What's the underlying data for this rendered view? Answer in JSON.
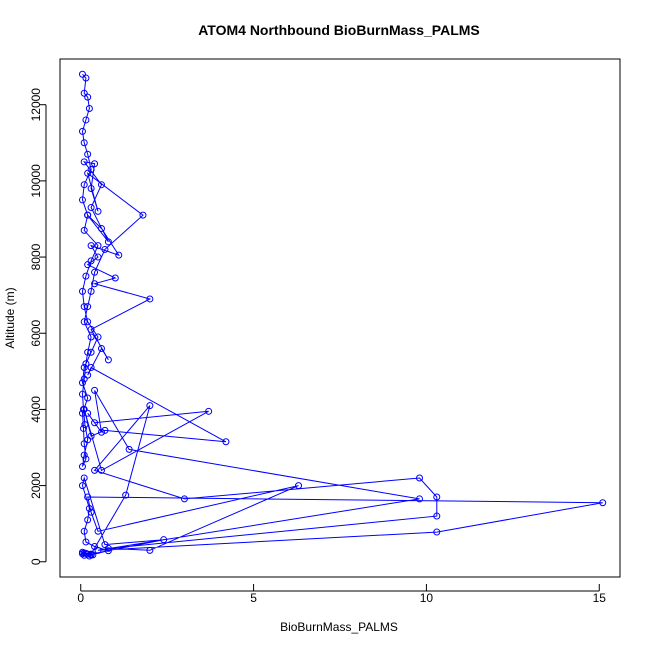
{
  "chart_data": {
    "type": "line",
    "title": "ATOM4 Northbound BioBurnMass_PALMS",
    "xlabel": "BioBurnMass_PALMS",
    "ylabel": "Altitude (m)",
    "xlim": [
      -0.6,
      15.6
    ],
    "ylim": [
      -400,
      13200
    ],
    "xticks": [
      0,
      5,
      10,
      15
    ],
    "yticks": [
      0,
      2000,
      4000,
      6000,
      8000,
      10000,
      12000
    ],
    "grid": false,
    "legend": "none",
    "color": "#0000ff",
    "series": [
      {
        "markers": "open-circle",
        "x": [
          0.3,
          0.15,
          0.1,
          0.05,
          0.2,
          0.35,
          0.25,
          0.1,
          0.05,
          0.3,
          0.8,
          0.4,
          0.15,
          0.1,
          0.2,
          0.25,
          0.05,
          0.1,
          0.7,
          2.4,
          0.3,
          1.3,
          2.0,
          0.4,
          3.0,
          9.8,
          10.3,
          10.3,
          0.8,
          2.0,
          6.3,
          0.5,
          0.3,
          0.2,
          15.1,
          10.3,
          0.5,
          9.8,
          1.4,
          0.4,
          0.6,
          0.2,
          0.4,
          3.7,
          0.6,
          0.1,
          0.3,
          0.7,
          4.2,
          0.3,
          0.2,
          0.6,
          0.8,
          0.3,
          2.0,
          0.4,
          1.0,
          0.2,
          0.5,
          0.3,
          1.1,
          0.6,
          0.2,
          0.8,
          0.3,
          0.6,
          0.1,
          0.4,
          0.3,
          0.5,
          0.2,
          1.8,
          0.7,
          0.4,
          0.3,
          0.2,
          0.1,
          0.3,
          0.2,
          0.15,
          0.1,
          0.05,
          0.08,
          0.12,
          0.2,
          0.1,
          0.05,
          0.15,
          0.1,
          0.08,
          0.05,
          0.2,
          0.05,
          0.1,
          0.3,
          0.5,
          0.2,
          0.1,
          0.05,
          0.15,
          0.3,
          0.5,
          0.1,
          0.2,
          0.05,
          0.1,
          0.3,
          0.2,
          0.1,
          0.05,
          0.15,
          0.25,
          0.2,
          0.1,
          0.15,
          0.05
        ],
        "y": [
          190,
          220,
          170,
          250,
          200,
          180,
          150,
          230,
          210,
          180,
          290,
          400,
          520,
          800,
          1100,
          1400,
          2000,
          2200,
          450,
          580,
          200,
          1750,
          4100,
          2400,
          1650,
          2200,
          1700,
          1200,
          350,
          300,
          2000,
          800,
          1300,
          1700,
          1550,
          780,
          300,
          1650,
          2950,
          4500,
          3400,
          3900,
          3650,
          3950,
          2400,
          4000,
          3300,
          3450,
          3150,
          5100,
          4900,
          5600,
          5300,
          6100,
          6900,
          7300,
          7450,
          7800,
          8000,
          8300,
          8050,
          8750,
          9100,
          8400,
          9300,
          9900,
          10500,
          10450,
          9800,
          9200,
          10200,
          9100,
          8200,
          7600,
          7100,
          6700,
          6300,
          5900,
          5500,
          5200,
          4800,
          4400,
          4000,
          3600,
          3200,
          2800,
          2500,
          2700,
          3100,
          3500,
          3900,
          4300,
          4700,
          5100,
          5500,
          5900,
          6300,
          6700,
          7100,
          7500,
          7900,
          8300,
          8700,
          9100,
          9500,
          9900,
          10300,
          10700,
          11000,
          11300,
          11600,
          11900,
          12200,
          12300,
          12700,
          12800
        ]
      }
    ]
  }
}
